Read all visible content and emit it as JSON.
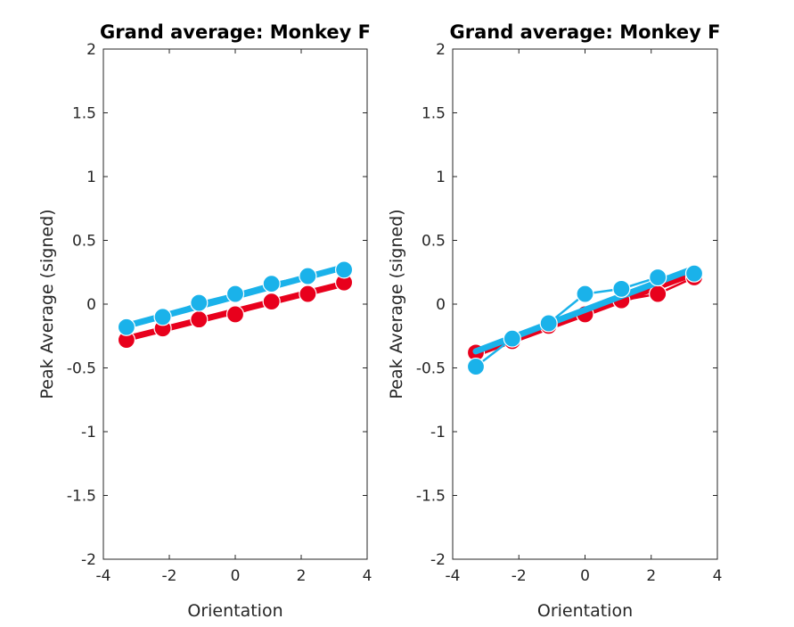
{
  "chart_data": [
    {
      "type": "line",
      "title": "Grand average: Monkey F",
      "xlabel": "Orientation",
      "ylabel": "Peak Average (signed)",
      "xlim": [
        -4,
        4
      ],
      "ylim": [
        -2,
        2
      ],
      "xticks": [
        "-4",
        "-2",
        "0",
        "2",
        "4"
      ],
      "yticks": [
        "-2",
        "-1.5",
        "-1",
        "-0.5",
        "0",
        "0.5",
        "1",
        "1.5",
        "2"
      ],
      "grid": false,
      "legend": "none",
      "series": [
        {
          "color": "#e8001c",
          "points": {
            "x": [
              -3.3,
              -2.2,
              -1.1,
              0,
              1.1,
              2.2,
              3.3
            ],
            "y": [
              -0.28,
              -0.19,
              -0.12,
              -0.08,
              0.02,
              0.08,
              0.17
            ]
          },
          "fit": {
            "x": [
              -3.3,
              3.3
            ],
            "y": [
              -0.27,
              0.16
            ]
          }
        },
        {
          "color": "#1ab2ea",
          "points": {
            "x": [
              -3.3,
              -2.2,
              -1.1,
              0,
              1.1,
              2.2,
              3.3
            ],
            "y": [
              -0.18,
              -0.1,
              0.01,
              0.08,
              0.16,
              0.22,
              0.27
            ]
          },
          "fit": {
            "x": [
              -3.3,
              3.3
            ],
            "y": [
              -0.17,
              0.29
            ]
          }
        }
      ]
    },
    {
      "type": "line",
      "title": "Grand average: Monkey F",
      "xlabel": "Orientation",
      "ylabel": "Peak Average (signed)",
      "xlim": [
        -4,
        4
      ],
      "ylim": [
        -2,
        2
      ],
      "xticks": [
        "-4",
        "-2",
        "0",
        "2",
        "4"
      ],
      "yticks": [
        "-2",
        "-1.5",
        "-1",
        "-0.5",
        "0",
        "0.5",
        "1",
        "1.5",
        "2"
      ],
      "grid": false,
      "legend": "none",
      "series": [
        {
          "color": "#e8001c",
          "points": {
            "x": [
              -3.3,
              -2.2,
              -1.1,
              0,
              1.1,
              2.2,
              3.3
            ],
            "y": [
              -0.38,
              -0.29,
              -0.17,
              -0.08,
              0.03,
              0.08,
              0.21
            ]
          },
          "fit": {
            "x": [
              -3.3,
              3.3
            ],
            "y": [
              -0.39,
              0.24
            ]
          }
        },
        {
          "color": "#1ab2ea",
          "points": {
            "x": [
              -3.3,
              -2.2,
              -1.1,
              0,
              1.1,
              2.2,
              3.3
            ],
            "y": [
              -0.49,
              -0.27,
              -0.15,
              0.08,
              0.12,
              0.21,
              0.24
            ]
          },
          "fit": {
            "x": [
              -3.3,
              3.3
            ],
            "y": [
              -0.37,
              0.28
            ]
          }
        }
      ]
    }
  ]
}
